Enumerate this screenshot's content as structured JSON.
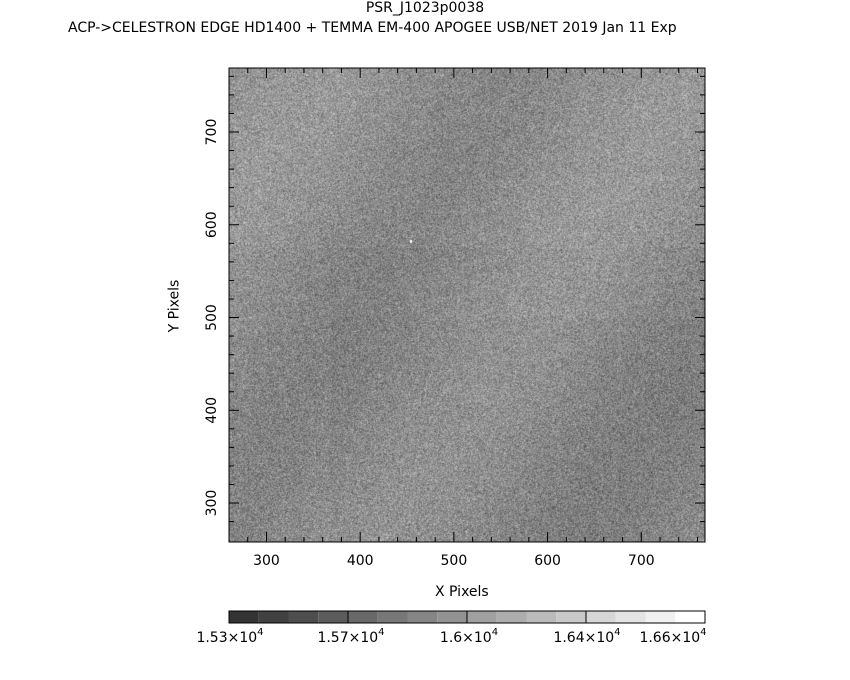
{
  "chart_data": {
    "type": "heatmap",
    "title": "PSR_J1023p0038",
    "subtitle": "ACP->CELESTRON EDGE HD1400 + TEMMA EM-400 APOGEE USB/NET   2019 Jan 11    Exp",
    "xlabel": "X Pixels",
    "ylabel": "Y Pixels",
    "xlim": [
      260,
      768
    ],
    "ylim": [
      258,
      769
    ],
    "xticks": [
      "300",
      "400",
      "500",
      "600",
      "700"
    ],
    "yticks": [
      "300",
      "400",
      "500",
      "600",
      "700"
    ],
    "colormap": "grayscale",
    "colorbar": {
      "range": [
        15300,
        16600
      ],
      "levels": 16,
      "tick_labels": [
        {
          "mant": "1.53×10",
          "exp": "4"
        },
        {
          "mant": "1.57×10",
          "exp": "4"
        },
        {
          "mant": "1.6×10",
          "exp": "4"
        },
        {
          "mant": "1.64×10",
          "exp": "4"
        },
        {
          "mant": "1.66×10",
          "exp": "4"
        }
      ]
    }
  }
}
